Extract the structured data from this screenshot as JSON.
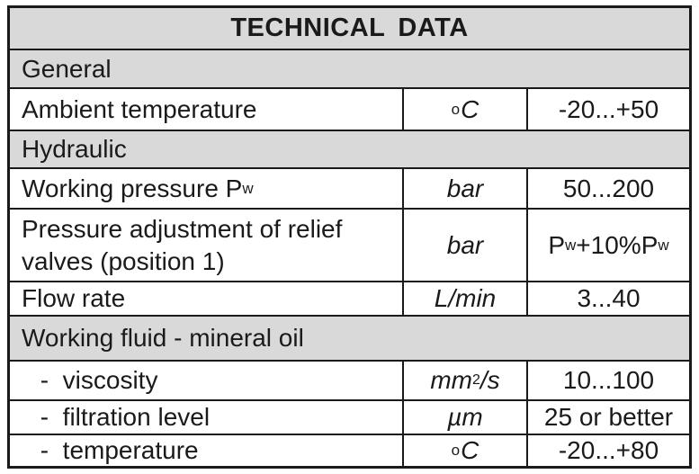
{
  "title": "TECHNICAL  DATA",
  "sections": {
    "general": "General",
    "hydraulic": "Hydraulic",
    "fluid": "Working fluid - mineral oil"
  },
  "rows": {
    "ambient": {
      "label": "Ambient temperature",
      "unit_sup": "o",
      "unit": "C",
      "value": "-20...+50"
    },
    "pressure": {
      "label": "Working pressure P",
      "label_sub": "w",
      "unit": "bar",
      "value": "50...200"
    },
    "relief": {
      "label_line1": "Pressure adjustment of relief",
      "label_line2": "valves (position 1)",
      "unit": "bar",
      "value_a": "P",
      "value_a_sub": "w",
      "value_b": "+10%P",
      "value_b_sub": "w"
    },
    "flow": {
      "label": "Flow rate",
      "unit": "L/min",
      "value": "3...40"
    },
    "viscosity": {
      "label": " -  viscosity",
      "unit_a": "mm",
      "unit_sup": "2",
      "unit_b": "/s",
      "value": "10...100"
    },
    "filtration": {
      "label": " -  filtration level",
      "unit": "µm",
      "value": "25 or better"
    },
    "temperature": {
      "label": " -  temperature",
      "unit_sup": "o",
      "unit": "C",
      "value": "-20...+80"
    }
  }
}
